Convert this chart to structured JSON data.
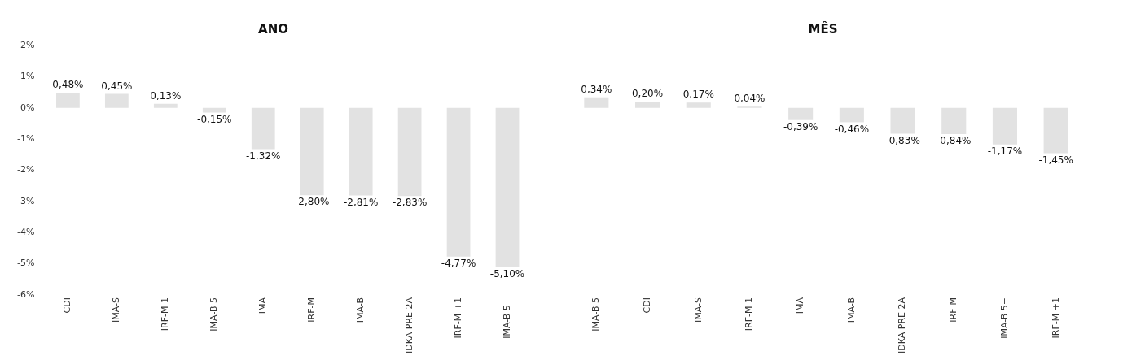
{
  "chart_data": [
    {
      "type": "bar",
      "title": "ANO",
      "categories": [
        "CDI",
        "IMA-S",
        "IRF-M 1",
        "IMA-B 5",
        "IMA",
        "IRF-M",
        "IMA-B",
        "IDKA PRE 2A",
        "IRF-M +1",
        "IMA-B 5+"
      ],
      "values": [
        0.48,
        0.45,
        0.13,
        -0.15,
        -1.32,
        -2.8,
        -2.81,
        -2.83,
        -4.77,
        -5.1
      ],
      "value_labels": [
        "0,48%",
        "0,45%",
        "0,13%",
        "-0,15%",
        "-1,32%",
        "-2,80%",
        "-2,81%",
        "-2,83%",
        "-4,77%",
        "-5,10%"
      ],
      "color": "#e2e2e2",
      "ylim": [
        -6,
        2
      ],
      "yticks": [
        {
          "value": 2,
          "label": "2%"
        },
        {
          "value": 1,
          "label": "1%"
        },
        {
          "value": 0,
          "label": "0%"
        },
        {
          "value": -1,
          "label": "-1%"
        },
        {
          "value": -2,
          "label": "-2%"
        },
        {
          "value": -3,
          "label": "-3%"
        },
        {
          "value": -4,
          "label": "-4%"
        },
        {
          "value": -5,
          "label": "-5%"
        },
        {
          "value": -6,
          "label": "-6%"
        }
      ],
      "grid": false,
      "legend": false
    },
    {
      "type": "bar",
      "title": "MÊS",
      "categories": [
        "IMA-B 5",
        "CDI",
        "IMA-S",
        "IRF-M 1",
        "IMA",
        "IMA-B",
        "IDKA PRE 2A",
        "IRF-M",
        "IMA-B 5+",
        "IRF-M +1"
      ],
      "values": [
        0.34,
        0.2,
        0.17,
        0.04,
        -0.39,
        -0.46,
        -0.83,
        -0.84,
        -1.17,
        -1.45
      ],
      "value_labels": [
        "0,34%",
        "0,20%",
        "0,17%",
        "0,04%",
        "-0,39%",
        "-0,46%",
        "-0,83%",
        "-0,84%",
        "-1,17%",
        "-1,45%"
      ],
      "color": "#e2e2e2",
      "ylim": [
        -6,
        2
      ],
      "tick_labels": "x",
      "grid": false,
      "legend": false
    }
  ]
}
